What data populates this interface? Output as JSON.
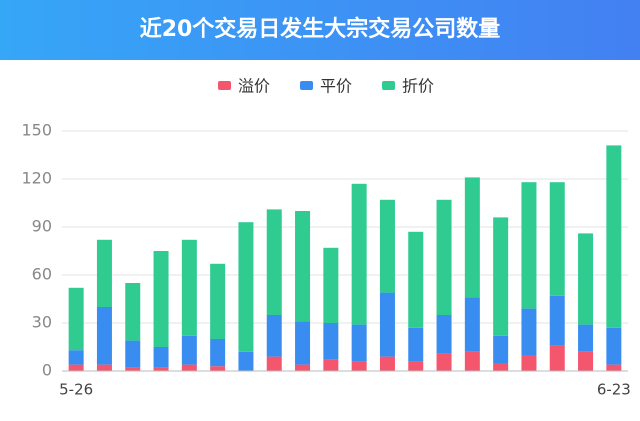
{
  "chart_data": {
    "type": "stacked_bar",
    "title": "近20个交易日发生大宗交易公司数量",
    "categories": [
      "5-26",
      null,
      null,
      null,
      null,
      null,
      null,
      null,
      null,
      null,
      null,
      null,
      null,
      null,
      null,
      null,
      null,
      null,
      null,
      "6-23"
    ],
    "series": [
      {
        "name": "溢价",
        "color": "#f4566e",
        "values": [
          4,
          4,
          2,
          2,
          4,
          3,
          0,
          9,
          4,
          7,
          6,
          9,
          6,
          11,
          12,
          5,
          10,
          16,
          12,
          4
        ]
      },
      {
        "name": "平价",
        "color": "#3a8df0",
        "values": [
          9,
          36,
          17,
          13,
          18,
          17,
          12,
          26,
          27,
          23,
          23,
          40,
          21,
          24,
          34,
          17,
          29,
          31,
          17,
          23
        ]
      },
      {
        "name": "折价",
        "color": "#2fcb91",
        "values": [
          39,
          42,
          36,
          60,
          60,
          47,
          81,
          66,
          69,
          47,
          88,
          58,
          60,
          72,
          75,
          74,
          79,
          71,
          57,
          114
        ]
      }
    ],
    "ylim": [
      0,
      150
    ],
    "yticks": [
      0,
      30,
      60,
      90,
      120,
      150
    ],
    "grid": true
  }
}
